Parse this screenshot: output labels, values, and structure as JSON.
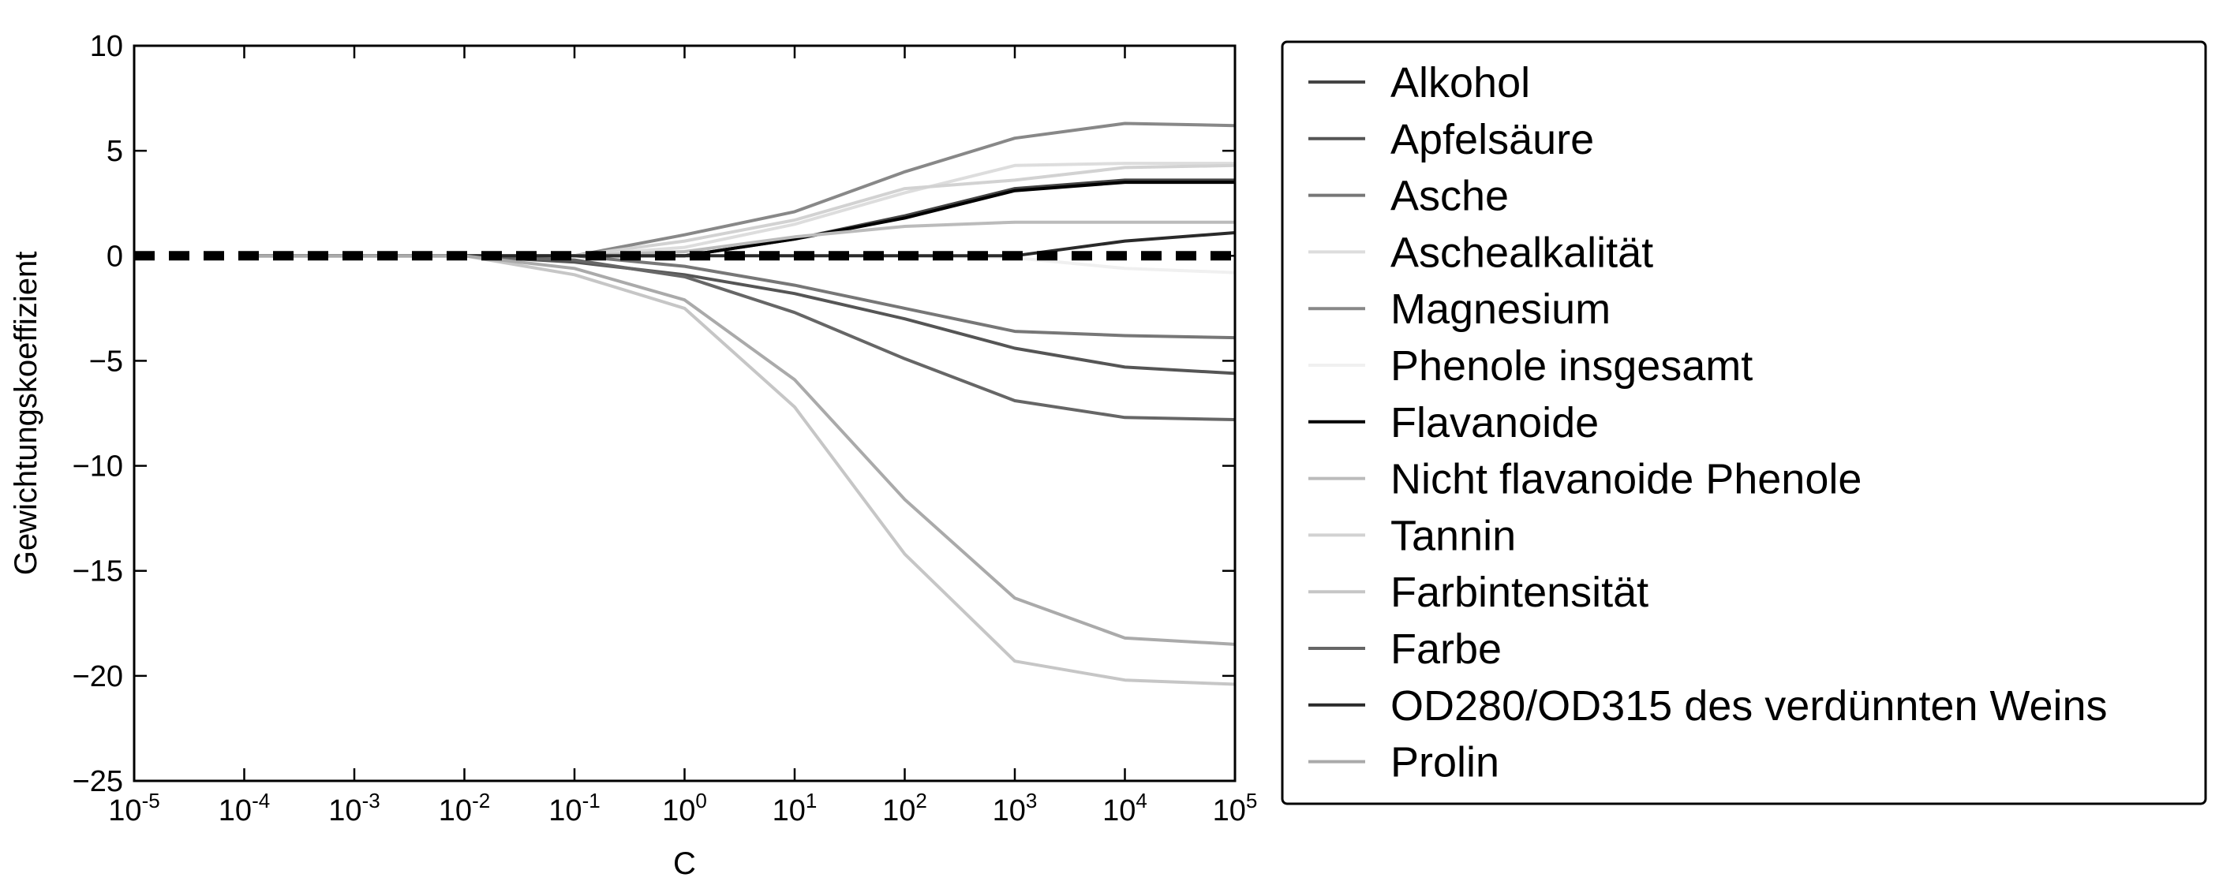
{
  "chart_data": {
    "type": "line",
    "title": "",
    "xlabel": "C",
    "ylabel": "Gewichtungskoeffizient",
    "x_scale": "log",
    "xlim": [
      1e-05,
      100000.0
    ],
    "ylim": [
      -25,
      10
    ],
    "x_ticks": [
      {
        "base": "10",
        "exp": "-5"
      },
      {
        "base": "10",
        "exp": "-4"
      },
      {
        "base": "10",
        "exp": "-3"
      },
      {
        "base": "10",
        "exp": "-2"
      },
      {
        "base": "10",
        "exp": "-1"
      },
      {
        "base": "10",
        "exp": "0"
      },
      {
        "base": "10",
        "exp": "1"
      },
      {
        "base": "10",
        "exp": "2"
      },
      {
        "base": "10",
        "exp": "3"
      },
      {
        "base": "10",
        "exp": "4"
      },
      {
        "base": "10",
        "exp": "5"
      }
    ],
    "y_ticks": [
      "10",
      "5",
      "0",
      "−5",
      "−10",
      "−15",
      "−20",
      "−25"
    ],
    "grid": false,
    "legend_position": "right, outside plot",
    "x": [
      0.0001,
      0.001,
      0.01,
      0.1,
      1,
      10,
      100,
      1000,
      10000,
      100000
    ],
    "reference_line": {
      "y": 0,
      "style": "dashed",
      "color": "#000000"
    },
    "series": [
      {
        "name": "Alkohol",
        "color": "#444444",
        "values": [
          0,
          0,
          0,
          0,
          0,
          0.8,
          1.9,
          3.2,
          3.6,
          3.6
        ]
      },
      {
        "name": "Apfelsäure",
        "color": "#555555",
        "values": [
          0,
          0,
          0,
          -0.3,
          -0.9,
          -1.8,
          -3.0,
          -4.4,
          -5.3,
          -5.6
        ]
      },
      {
        "name": "Asche",
        "color": "#777777",
        "values": [
          0,
          0,
          0,
          0,
          -0.5,
          -1.4,
          -2.5,
          -3.6,
          -3.8,
          -3.9
        ]
      },
      {
        "name": "Aschealkalität",
        "color": "#dddddd",
        "values": [
          0,
          0,
          0,
          0,
          0.4,
          1.5,
          3.0,
          4.3,
          4.4,
          4.4
        ]
      },
      {
        "name": "Magnesium",
        "color": "#888888",
        "values": [
          0,
          0,
          0,
          0,
          1.0,
          2.1,
          4.0,
          5.6,
          6.3,
          6.2
        ]
      },
      {
        "name": "Phenole insgesamt",
        "color": "#f0f0f0",
        "values": [
          0,
          0,
          0,
          0,
          0,
          0,
          0,
          -0.1,
          -0.6,
          -0.8
        ]
      },
      {
        "name": "Flavanoide",
        "color": "#000000",
        "values": [
          0,
          0,
          0,
          0,
          0,
          0.8,
          1.8,
          3.1,
          3.5,
          3.5
        ]
      },
      {
        "name": "Nicht flavanoide Phenole",
        "color": "#bbbbbb",
        "values": [
          0,
          0,
          0,
          0,
          0.2,
          0.9,
          1.4,
          1.6,
          1.6,
          1.6
        ]
      },
      {
        "name": "Tannin",
        "color": "#d2d2d2",
        "values": [
          0,
          0,
          0,
          0,
          0.7,
          1.7,
          3.2,
          3.6,
          4.2,
          4.3
        ]
      },
      {
        "name": "Farbintensität",
        "color": "#c6c6c6",
        "values": [
          0,
          0,
          0,
          -0.9,
          -2.5,
          -7.2,
          -14.2,
          -19.3,
          -20.2,
          -20.4
        ]
      },
      {
        "name": "Farbe",
        "color": "#666666",
        "values": [
          0,
          0,
          0,
          -0.2,
          -1.0,
          -2.7,
          -4.9,
          -6.9,
          -7.7,
          -7.8
        ]
      },
      {
        "name": "OD280/OD315 des verdünnten Weins",
        "color": "#2a2a2a",
        "values": [
          0,
          0,
          0,
          0,
          0,
          0,
          0,
          0,
          0.7,
          1.1
        ]
      },
      {
        "name": "Prolin",
        "color": "#aaaaaa",
        "values": [
          0,
          0,
          0,
          -0.6,
          -2.1,
          -5.9,
          -11.6,
          -16.3,
          -18.2,
          -18.5
        ]
      }
    ]
  }
}
